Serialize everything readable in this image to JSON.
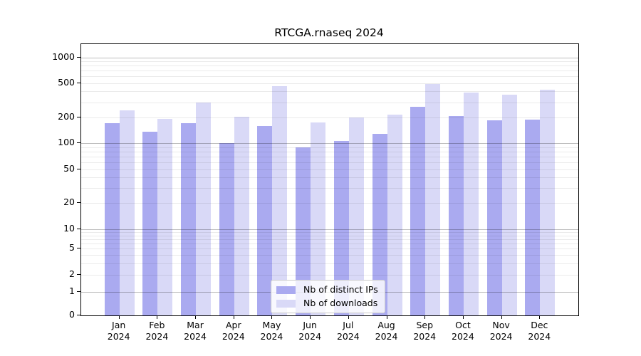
{
  "title": "RTCGA.rnaseq 2024",
  "colors": {
    "distinct_ips": "#aaaaf0",
    "downloads": "#d9d9f7",
    "grid_minor": "rgba(0,0,0,0.08)",
    "grid_major": "rgba(0,0,0,0.26)",
    "axis": "#000000"
  },
  "legend": {
    "items": [
      {
        "label": "Nb of distinct IPs",
        "series": "distinct_ips"
      },
      {
        "label": "Nb of downloads",
        "series": "downloads"
      }
    ]
  },
  "y_axis": {
    "tick_labels": [
      "0",
      "1",
      "2",
      "5",
      "10",
      "20",
      "50",
      "100",
      "200",
      "500",
      "1000"
    ]
  },
  "x_axis": {
    "categories": [
      {
        "line1": "Jan",
        "line2": "2024"
      },
      {
        "line1": "Feb",
        "line2": "2024"
      },
      {
        "line1": "Mar",
        "line2": "2024"
      },
      {
        "line1": "Apr",
        "line2": "2024"
      },
      {
        "line1": "May",
        "line2": "2024"
      },
      {
        "line1": "Jun",
        "line2": "2024"
      },
      {
        "line1": "Jul",
        "line2": "2024"
      },
      {
        "line1": "Aug",
        "line2": "2024"
      },
      {
        "line1": "Sep",
        "line2": "2024"
      },
      {
        "line1": "Oct",
        "line2": "2024"
      },
      {
        "line1": "Nov",
        "line2": "2024"
      },
      {
        "line1": "Dec",
        "line2": "2024"
      }
    ]
  },
  "chart_data": {
    "type": "bar",
    "title": "RTCGA.rnaseq 2024",
    "categories": [
      "Jan 2024",
      "Feb 2024",
      "Mar 2024",
      "Apr 2024",
      "May 2024",
      "Jun 2024",
      "Jul 2024",
      "Aug 2024",
      "Sep 2024",
      "Oct 2024",
      "Nov 2024",
      "Dec 2024"
    ],
    "series": [
      {
        "name": "Nb of distinct IPs",
        "color": "#aaaaf0",
        "values": [
          172,
          137,
          172,
          100,
          158,
          90,
          107,
          130,
          265,
          208,
          184,
          189
        ]
      },
      {
        "name": "Nb of downloads",
        "color": "#d9d9f7",
        "values": [
          240,
          192,
          300,
          205,
          460,
          175,
          200,
          214,
          485,
          385,
          365,
          420
        ]
      }
    ],
    "y_scale": "logarithmic-like (compressed below 10, includes 0)",
    "y_ticks": [
      0,
      1,
      2,
      5,
      10,
      20,
      50,
      100,
      200,
      500,
      1000
    ],
    "ylim": [
      0,
      1300
    ],
    "grid": "horizontal log minor + major gridlines, drawn over bars",
    "legend_position": "lower center"
  }
}
